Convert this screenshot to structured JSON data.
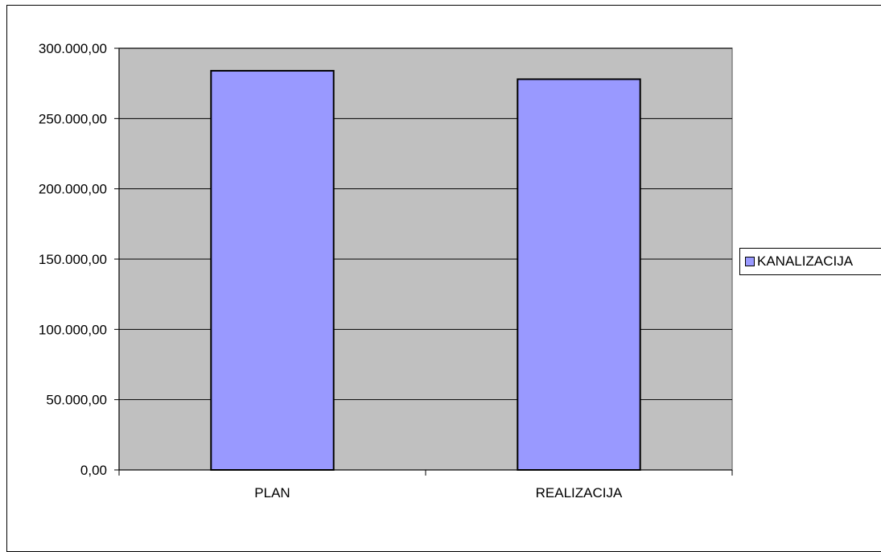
{
  "chart_data": {
    "type": "bar",
    "title": "",
    "xlabel": "",
    "ylabel": "",
    "categories": [
      "PLAN",
      "REALIZACIJA"
    ],
    "series": [
      {
        "name": "KANALIZACIJA",
        "values": [
          284000,
          278000
        ],
        "color": "#9999ff"
      }
    ],
    "ylim": [
      0,
      300000
    ],
    "yticks": [
      0,
      50000,
      100000,
      150000,
      200000,
      250000,
      300000
    ],
    "ytick_labels": [
      "0,00",
      "50.000,00",
      "100.000,00",
      "150.000,00",
      "200.000,00",
      "250.000,00",
      "300.000,00"
    ],
    "grid": true,
    "legend_position": "right",
    "plot_background": "#c0c0c0"
  }
}
